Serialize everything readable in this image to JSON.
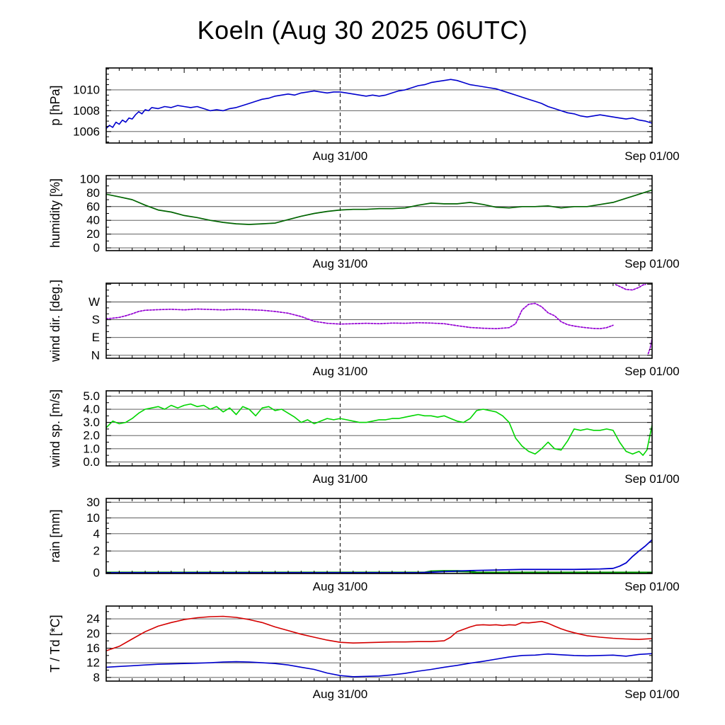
{
  "title": "Koeln (Aug 30 2025 06UTC)",
  "style": {
    "background": "#ffffff",
    "axis_color": "#000000",
    "grid_color": "#4a4a4a",
    "cursor_dash": "5,4"
  },
  "xaxis": {
    "xlim": [
      0,
      42
    ],
    "minor_step": 1,
    "major_ticks": [
      6,
      18,
      30,
      42
    ],
    "labels": [
      {
        "x": 18,
        "text": "Aug 31/00"
      },
      {
        "x": 42,
        "text": "Sep 01/00"
      }
    ],
    "vline": {
      "x": 18,
      "style": "dashed"
    }
  },
  "chart_data": [
    {
      "id": "pressure",
      "type": "line",
      "ylabel": "p [hPa]",
      "ylim": [
        1004.9,
        1012.1
      ],
      "ymajors": [
        1006,
        1008,
        1010
      ],
      "yminor_step": 0.5,
      "yticks": [
        {
          "v": 1006,
          "label": "1006"
        },
        {
          "v": 1008,
          "label": "1008"
        },
        {
          "v": 1010,
          "label": "1010"
        }
      ],
      "series": [
        {
          "name": "pressure",
          "color": "#0000cd",
          "width": 1.6,
          "x": [
            0,
            0.25,
            0.5,
            0.75,
            1,
            1.25,
            1.5,
            1.75,
            2,
            2.25,
            2.5,
            2.75,
            3,
            3.25,
            3.5,
            4,
            4.5,
            5,
            5.5,
            6,
            6.5,
            7,
            7.5,
            8,
            8.5,
            9,
            9.5,
            10,
            10.5,
            11,
            11.5,
            12,
            12.5,
            13,
            13.5,
            14,
            14.5,
            15,
            15.5,
            16,
            16.5,
            17,
            17.5,
            18,
            18.5,
            19,
            19.5,
            20,
            20.5,
            21,
            21.5,
            22,
            22.5,
            23,
            23.5,
            24,
            24.5,
            25,
            25.5,
            26,
            26.5,
            27,
            27.5,
            28,
            28.5,
            29,
            29.5,
            30,
            30.5,
            31,
            31.5,
            32,
            32.5,
            33,
            33.5,
            34,
            34.5,
            35,
            35.5,
            36,
            36.5,
            37,
            37.5,
            38,
            38.5,
            39,
            39.5,
            40,
            40.5,
            41,
            41.5,
            42
          ],
          "y": [
            1006.3,
            1006.6,
            1006.4,
            1006.9,
            1006.7,
            1007.1,
            1006.9,
            1007.3,
            1007.2,
            1007.6,
            1007.9,
            1007.7,
            1008.1,
            1008.0,
            1008.3,
            1008.2,
            1008.4,
            1008.3,
            1008.5,
            1008.4,
            1008.3,
            1008.4,
            1008.2,
            1008.0,
            1008.1,
            1008.0,
            1008.2,
            1008.3,
            1008.5,
            1008.7,
            1008.9,
            1009.1,
            1009.2,
            1009.4,
            1009.5,
            1009.6,
            1009.5,
            1009.7,
            1009.8,
            1009.9,
            1009.8,
            1009.7,
            1009.8,
            1009.8,
            1009.7,
            1009.6,
            1009.5,
            1009.4,
            1009.5,
            1009.4,
            1009.5,
            1009.7,
            1009.9,
            1010.0,
            1010.2,
            1010.4,
            1010.5,
            1010.7,
            1010.8,
            1010.9,
            1011.0,
            1010.9,
            1010.7,
            1010.5,
            1010.4,
            1010.3,
            1010.2,
            1010.1,
            1009.9,
            1009.7,
            1009.5,
            1009.3,
            1009.1,
            1008.9,
            1008.7,
            1008.4,
            1008.2,
            1008.0,
            1007.8,
            1007.7,
            1007.5,
            1007.4,
            1007.5,
            1007.6,
            1007.5,
            1007.4,
            1007.3,
            1007.2,
            1007.3,
            1007.1,
            1007.0,
            1006.8
          ]
        }
      ]
    },
    {
      "id": "humidity",
      "type": "line",
      "ylabel": "humidity [%]",
      "ylim": [
        -4,
        105
      ],
      "ymajors": [
        0,
        20,
        40,
        60,
        80,
        100
      ],
      "yminor_step": 10,
      "yticks": [
        {
          "v": 0,
          "label": "0"
        },
        {
          "v": 20,
          "label": "20"
        },
        {
          "v": 40,
          "label": "40"
        },
        {
          "v": 60,
          "label": "60"
        },
        {
          "v": 80,
          "label": "80"
        },
        {
          "v": 100,
          "label": "100"
        }
      ],
      "series": [
        {
          "name": "humidity",
          "color": "#006400",
          "width": 1.7,
          "x": [
            0,
            1,
            2,
            3,
            4,
            5,
            6,
            7,
            8,
            9,
            10,
            11,
            12,
            13,
            14,
            15,
            16,
            17,
            18,
            19,
            20,
            21,
            22,
            23,
            24,
            25,
            26,
            27,
            28,
            29,
            30,
            31,
            32,
            33,
            34,
            35,
            36,
            37,
            38,
            39,
            40,
            41,
            42
          ],
          "y": [
            78,
            74,
            70,
            62,
            55,
            52,
            47,
            44,
            40,
            37,
            35,
            34,
            35,
            36,
            41,
            46,
            50,
            53,
            55,
            56,
            56,
            57,
            57,
            58,
            62,
            65,
            64,
            64,
            66,
            63,
            59,
            58,
            60,
            60,
            61,
            58,
            60,
            60,
            63,
            66,
            72,
            78,
            84
          ]
        }
      ]
    },
    {
      "id": "wind-direction",
      "type": "line",
      "ylabel": "wind dir. [deg.]",
      "ylim": [
        -15,
        365
      ],
      "ymajors": [
        0,
        90,
        180,
        270,
        360
      ],
      "yminor_step": 30,
      "yticks": [
        {
          "v": 0,
          "label": "N"
        },
        {
          "v": 90,
          "label": "E"
        },
        {
          "v": 180,
          "label": "S"
        },
        {
          "v": 270,
          "label": "W"
        }
      ],
      "series": [
        {
          "name": "wind-direction",
          "color": "#9400d3",
          "width": 1.7,
          "dash": "2.5,2",
          "split_gap": 150,
          "x": [
            0,
            0.5,
            1,
            1.5,
            2,
            2.5,
            3,
            4,
            5,
            6,
            7,
            8,
            9,
            10,
            11,
            12,
            13,
            14,
            15,
            16,
            17,
            18,
            19,
            20,
            21,
            22,
            23,
            24,
            25,
            26,
            27,
            28,
            29,
            30,
            31,
            31.5,
            32,
            32.5,
            33,
            33.5,
            34,
            34.5,
            35,
            35.5,
            36,
            36.5,
            37,
            37.5,
            38,
            38.5,
            39,
            39.2,
            39.6,
            40,
            40.5,
            41,
            41.3,
            41.5,
            41.7,
            41.85,
            42
          ],
          "y": [
            185,
            188,
            192,
            200,
            210,
            222,
            228,
            231,
            233,
            230,
            234,
            232,
            230,
            233,
            231,
            228,
            222,
            213,
            196,
            172,
            162,
            158,
            160,
            162,
            160,
            163,
            162,
            165,
            163,
            160,
            150,
            141,
            137,
            135,
            140,
            160,
            230,
            258,
            263,
            246,
            215,
            200,
            170,
            155,
            148,
            143,
            139,
            136,
            135,
            140,
            152,
            358,
            346,
            333,
            331,
            344,
            356,
            359,
            8,
            35,
            85
          ]
        }
      ]
    },
    {
      "id": "wind-speed",
      "type": "line",
      "ylabel": "wind sp. [m/s]",
      "ylim": [
        -0.3,
        5.4
      ],
      "ymajors": [
        0,
        1,
        2,
        3,
        4,
        5
      ],
      "yminor_step": 0.5,
      "yticks": [
        {
          "v": 0,
          "label": "0.0"
        },
        {
          "v": 1,
          "label": "1.0"
        },
        {
          "v": 2,
          "label": "2.0"
        },
        {
          "v": 3,
          "label": "3.0"
        },
        {
          "v": 4,
          "label": "4.0"
        },
        {
          "v": 5,
          "label": "5.0"
        }
      ],
      "series": [
        {
          "name": "wind-speed",
          "color": "#00d500",
          "width": 1.6,
          "x": [
            0,
            0.5,
            1,
            1.5,
            2,
            2.5,
            3,
            3.5,
            4,
            4.5,
            5,
            5.5,
            6,
            6.5,
            7,
            7.5,
            8,
            8.5,
            9,
            9.5,
            10,
            10.5,
            11,
            11.5,
            12,
            12.5,
            13,
            13.5,
            14,
            14.5,
            15,
            15.5,
            16,
            16.5,
            17,
            17.5,
            18,
            18.5,
            19,
            19.5,
            20,
            20.5,
            21,
            21.5,
            22,
            22.5,
            23,
            23.5,
            24,
            24.5,
            25,
            25.5,
            26,
            26.5,
            27,
            27.5,
            28,
            28.5,
            29,
            29.5,
            30,
            30.5,
            31,
            31.5,
            32,
            32.5,
            33,
            33.5,
            34,
            34.5,
            35,
            35.5,
            36,
            36.5,
            37,
            37.5,
            38,
            38.5,
            39,
            39.5,
            40,
            40.5,
            41,
            41.3,
            41.6,
            42
          ],
          "y": [
            2.6,
            3.1,
            2.9,
            3.0,
            3.3,
            3.7,
            4.0,
            4.1,
            4.2,
            4.0,
            4.3,
            4.1,
            4.3,
            4.4,
            4.2,
            4.3,
            4.0,
            4.2,
            3.8,
            4.1,
            3.6,
            4.2,
            4.0,
            3.5,
            4.1,
            4.2,
            3.9,
            4.0,
            3.7,
            3.4,
            3.0,
            3.2,
            2.9,
            3.1,
            3.3,
            3.2,
            3.3,
            3.2,
            3.1,
            3.0,
            3.0,
            3.1,
            3.2,
            3.2,
            3.3,
            3.3,
            3.4,
            3.5,
            3.6,
            3.5,
            3.5,
            3.4,
            3.5,
            3.3,
            3.1,
            3.0,
            3.3,
            3.9,
            4.0,
            3.9,
            3.8,
            3.5,
            3.0,
            1.8,
            1.2,
            0.8,
            0.6,
            1.0,
            1.5,
            1.0,
            0.9,
            1.6,
            2.5,
            2.4,
            2.5,
            2.4,
            2.4,
            2.5,
            2.4,
            1.5,
            0.8,
            0.6,
            0.8,
            0.5,
            0.9,
            2.8
          ]
        }
      ]
    },
    {
      "id": "rain",
      "type": "line",
      "ylabel": "rain [mm]",
      "yscale": {
        "type": "piecewise",
        "values": [
          0,
          2,
          4,
          10,
          30
        ],
        "positions": [
          0.01,
          0.3,
          0.53,
          0.74,
          0.95
        ]
      },
      "ymajors": [
        0,
        2,
        4,
        10,
        30
      ],
      "yminor": [
        1,
        3,
        6,
        8,
        20
      ],
      "yticks": [
        {
          "v": 0,
          "label": "0"
        },
        {
          "v": 2,
          "label": "2"
        },
        {
          "v": 4,
          "label": "4"
        },
        {
          "v": 10,
          "label": "10"
        },
        {
          "v": 30,
          "label": "30"
        }
      ],
      "series": [
        {
          "name": "rain-rate",
          "color": "#009900",
          "width": 3,
          "x": [
            0,
            24.5,
            25,
            26,
            27,
            28,
            28.5,
            42
          ],
          "y": [
            0,
            0,
            0.12,
            0.15,
            0.15,
            0.12,
            0,
            0
          ]
        },
        {
          "name": "rain-accum",
          "color": "#0000cd",
          "width": 1.8,
          "x": [
            0,
            24,
            25,
            26,
            27,
            28,
            30,
            32,
            34,
            36,
            38,
            39,
            39.5,
            40,
            40.5,
            41,
            41.5,
            42
          ],
          "y": [
            0,
            0,
            0.05,
            0.1,
            0.15,
            0.2,
            0.25,
            0.3,
            0.3,
            0.3,
            0.35,
            0.4,
            0.6,
            0.9,
            1.5,
            2.0,
            2.6,
            3.3
          ]
        }
      ]
    },
    {
      "id": "temperature",
      "type": "line",
      "ylabel": "T / Td [*C]",
      "ylim": [
        7,
        27.5
      ],
      "ymajors": [
        8,
        12,
        16,
        20,
        24
      ],
      "yminor_step": 2,
      "yticks": [
        {
          "v": 8,
          "label": "8"
        },
        {
          "v": 12,
          "label": "12"
        },
        {
          "v": 16,
          "label": "16"
        },
        {
          "v": 20,
          "label": "20"
        },
        {
          "v": 24,
          "label": "24"
        }
      ],
      "series": [
        {
          "name": "temperature",
          "color": "#d40000",
          "width": 1.6,
          "x": [
            0,
            1,
            2,
            3,
            4,
            5,
            6,
            7,
            8,
            9,
            10,
            11,
            12,
            13,
            14,
            15,
            16,
            17,
            18,
            19,
            20,
            21,
            22,
            23,
            24,
            25,
            26,
            26.5,
            27,
            28,
            28.5,
            29,
            29.5,
            30,
            30.5,
            31,
            31.5,
            32,
            32.5,
            33,
            33.5,
            34,
            34.5,
            35,
            35.5,
            36,
            36.5,
            37,
            38,
            39,
            40,
            41,
            42
          ],
          "y": [
            15.3,
            16.5,
            18.5,
            20.5,
            22.0,
            23.0,
            23.8,
            24.3,
            24.6,
            24.7,
            24.4,
            23.8,
            23.0,
            21.8,
            20.8,
            19.8,
            19.0,
            18.2,
            17.6,
            17.4,
            17.5,
            17.6,
            17.7,
            17.7,
            17.8,
            17.8,
            18.0,
            19.0,
            20.5,
            21.8,
            22.3,
            22.4,
            22.3,
            22.4,
            22.2,
            22.4,
            22.3,
            23.0,
            22.9,
            23.1,
            23.3,
            22.8,
            22.0,
            21.3,
            20.7,
            20.2,
            19.8,
            19.4,
            19.0,
            18.7,
            18.5,
            18.4,
            18.6
          ]
        },
        {
          "name": "dewpoint",
          "color": "#0000cd",
          "width": 1.6,
          "x": [
            0,
            1,
            2,
            3,
            4,
            5,
            6,
            7,
            8,
            9,
            10,
            11,
            12,
            13,
            14,
            15,
            16,
            17,
            18,
            19,
            20,
            21,
            22,
            23,
            24,
            25,
            26,
            27,
            28,
            29,
            30,
            31,
            32,
            33,
            34,
            35,
            36,
            37,
            38,
            39,
            40,
            41,
            42
          ],
          "y": [
            10.8,
            11.0,
            11.2,
            11.4,
            11.6,
            11.7,
            11.8,
            11.9,
            12.0,
            12.2,
            12.3,
            12.2,
            12.0,
            11.8,
            11.4,
            10.8,
            10.2,
            9.2,
            8.5,
            8.2,
            8.3,
            8.4,
            8.7,
            9.1,
            9.7,
            10.2,
            10.8,
            11.3,
            11.9,
            12.4,
            13.0,
            13.6,
            14.0,
            14.1,
            14.4,
            14.2,
            14.0,
            13.9,
            14.0,
            14.1,
            13.8,
            14.3,
            14.5
          ]
        }
      ]
    }
  ]
}
